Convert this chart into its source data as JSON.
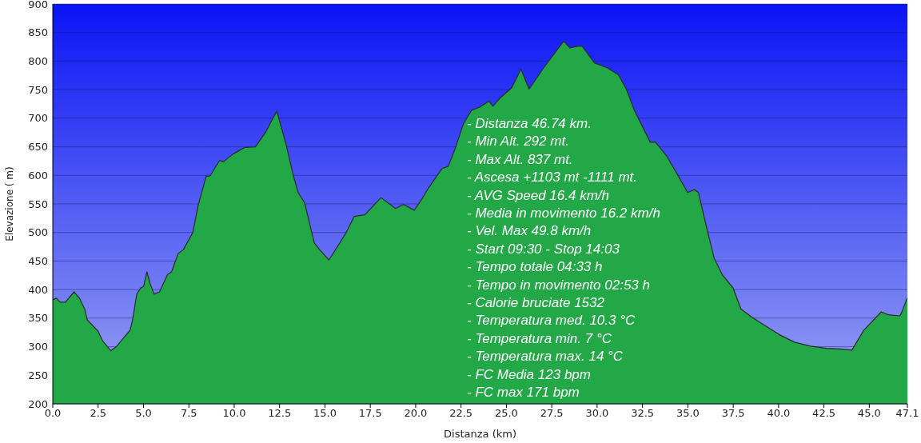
{
  "chart_data": {
    "type": "area",
    "xlabel": "Distanza  (km)",
    "ylabel": "Elevazione ( m)",
    "x": [
      0,
      0.2,
      0.4,
      0.7,
      1.17,
      1.47,
      1.76,
      1.9,
      2.5,
      2.75,
      3.2,
      3.5,
      4.26,
      4.4,
      4.63,
      4.85,
      5.0,
      5.19,
      5.37,
      5.58,
      5.88,
      6.32,
      6.55,
      6.91,
      7.2,
      7.72,
      8.01,
      8.45,
      8.67,
      9.19,
      9.41,
      9.92,
      10.59,
      11.17,
      11.76,
      12.05,
      12.35,
      12.86,
      13.23,
      13.52,
      13.88,
      14.41,
      14.7,
      15.22,
      15.73,
      16.17,
      16.61,
      17.2,
      18.09,
      18.89,
      19.33,
      19.92,
      20.29,
      20.73,
      21.46,
      21.8,
      22.2,
      22.64,
      23.08,
      23.5,
      24.04,
      24.26,
      24.7,
      25.29,
      25.8,
      26.25,
      27.05,
      28.16,
      28.5,
      28.9,
      29.18,
      29.85,
      30.58,
      31.17,
      31.61,
      32.05,
      32.93,
      33.22,
      33.81,
      34.4,
      34.99,
      35.36,
      35.58,
      36.1,
      36.46,
      36.9,
      37.49,
      37.93,
      38.52,
      39.4,
      39.99,
      40.87,
      41.76,
      42.64,
      43.37,
      44.04,
      44.7,
      45.66,
      46.03,
      46.68,
      46.76,
      47.05,
      47.1
    ],
    "series": [
      {
        "color": "#22a846",
        "values": [
          382,
          385,
          378,
          378,
          396,
          385,
          366,
          347,
          327,
          310,
          293,
          300,
          329,
          347,
          392,
          403,
          405,
          431,
          410,
          392,
          396,
          426,
          431,
          463,
          470,
          500,
          547,
          598,
          599,
          626,
          624,
          637,
          649,
          650,
          677,
          695,
          712,
          654,
          603,
          570,
          552,
          482,
          470,
          452,
          477,
          500,
          528,
          531,
          561,
          542,
          549,
          539,
          556,
          579,
          612,
          616,
          649,
          691,
          714,
          719,
          730,
          721,
          737,
          753,
          786,
          751,
          788,
          835,
          823,
          826,
          826,
          797,
          788,
          776,
          751,
          714,
          658,
          658,
          635,
          603,
          570,
          575,
          570,
          500,
          454,
          426,
          403,
          366,
          352,
          334,
          322,
          308,
          301,
          297,
          296,
          294,
          329,
          361,
          356,
          354,
          358,
          382,
          385
        ]
      }
    ],
    "xlim": [
      0,
      47.1
    ],
    "xticks": [
      {
        "value": 0,
        "label": "0.0"
      },
      2.5,
      {
        "value": 5,
        "label": "5.0"
      },
      7.5,
      {
        "value": 10,
        "label": "10.0"
      },
      12.5,
      {
        "value": 15,
        "label": "15.0"
      },
      17.5,
      {
        "value": 20,
        "label": "20.0"
      },
      22.5,
      {
        "value": 25,
        "label": "25.0"
      },
      27.5,
      {
        "value": 30,
        "label": "30.0"
      },
      32.5,
      {
        "value": 35,
        "label": "35.0"
      },
      37.5,
      {
        "value": 40,
        "label": "40.0"
      },
      42.5,
      {
        "value": 45,
        "label": "45.0"
      },
      47.1
    ],
    "ylim": [
      200,
      900
    ],
    "yticks": [
      200,
      250,
      300,
      350,
      400,
      450,
      500,
      550,
      600,
      650,
      700,
      750,
      800,
      850,
      900
    ],
    "grid": "y",
    "annotations": [
      "- Distanza 46.74 km.",
      "- Min Alt. 292 mt.",
      "- Max Alt. 837 mt.",
      "- Ascesa +1103 mt -1111 mt.",
      "- AVG Speed 16.4 km/h",
      "- Media in movimento 16.2 km/h",
      "- Vel. Max 49.8 km/h",
      "- Start 09:30 - Stop 14:03",
      "- Tempo totale 04:33 h",
      "- Tempo in movimento 02:53 h",
      "- Calorie bruciate 1532",
      "- Temperatura med. 10.3 °C",
      "- Temperatura min. 7 °C",
      "- Temperatura max. 14 °C",
      "- FC Media 123 bpm",
      "- FC max 171 bpm"
    ]
  }
}
